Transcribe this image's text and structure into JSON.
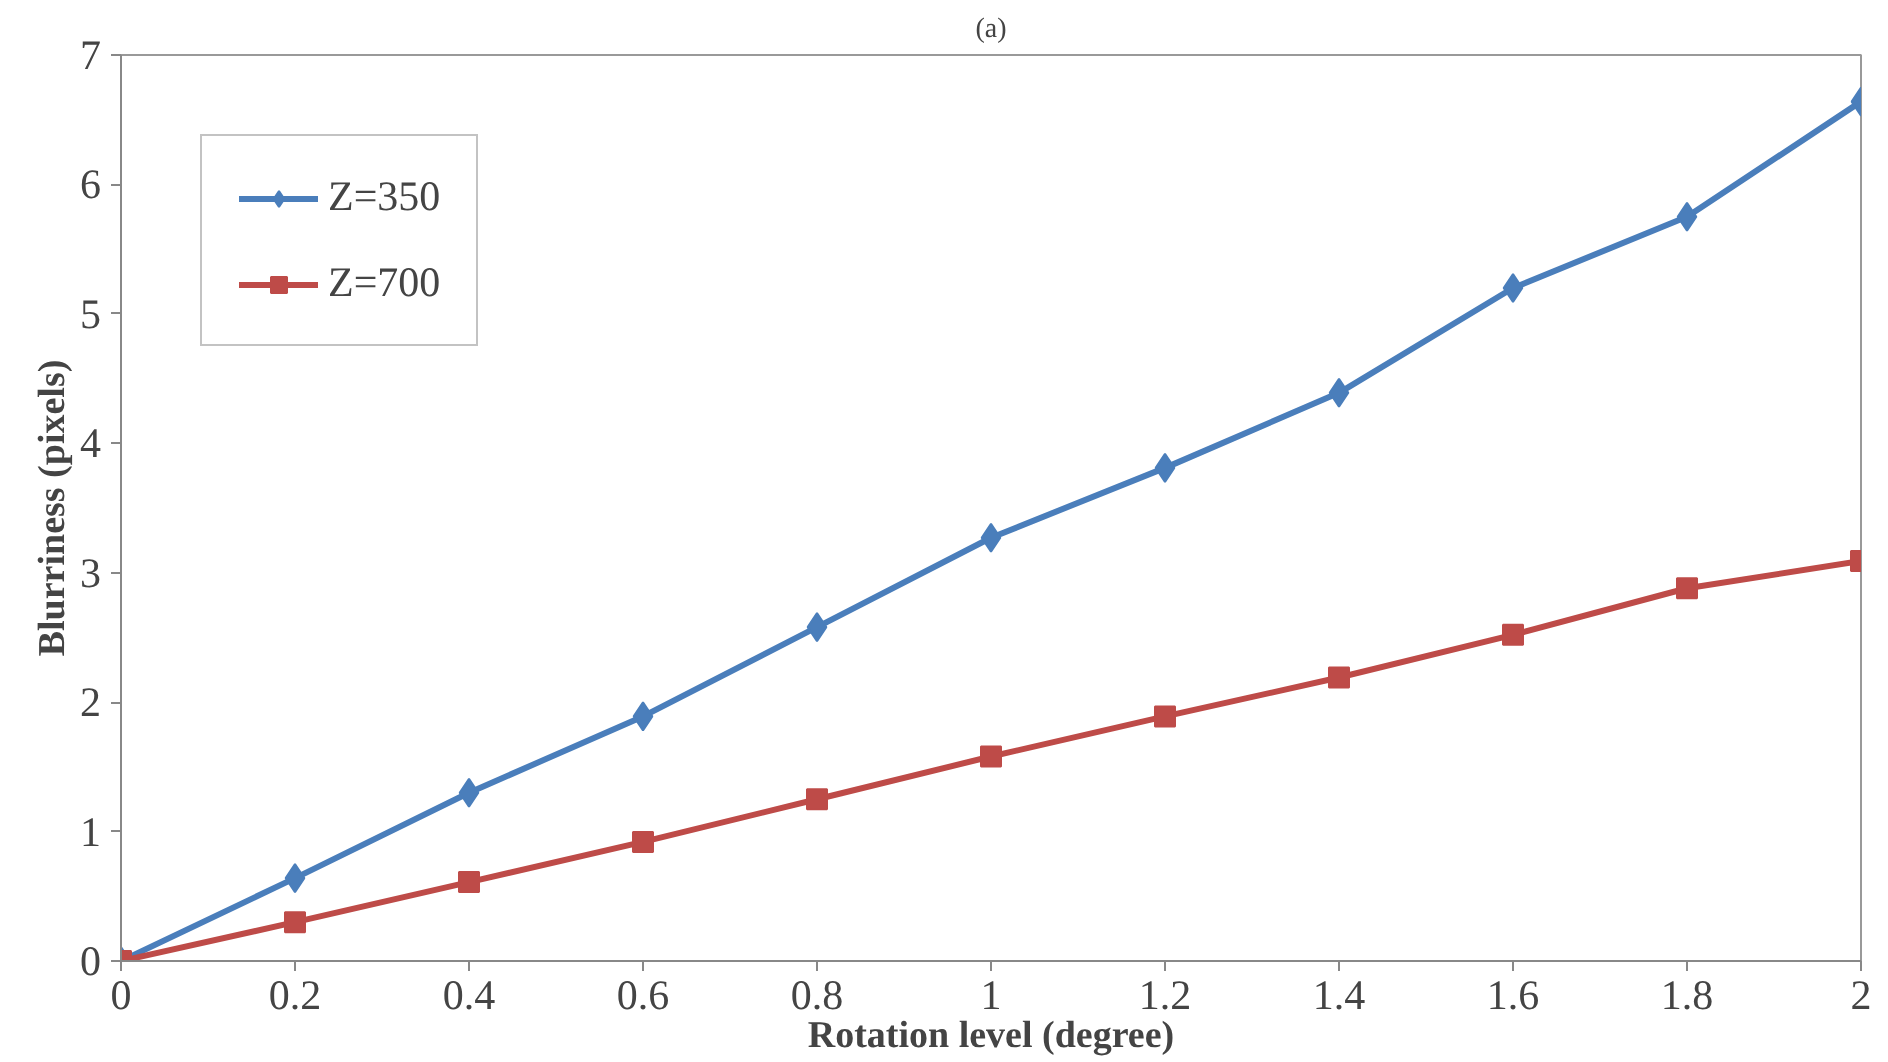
{
  "chart_data": {
    "type": "line",
    "title": "(a)",
    "xlabel": "Rotation level (degree)",
    "ylabel": "Blurriness (pixels)",
    "x": [
      0,
      0.2,
      0.4,
      0.6,
      0.8,
      1,
      1.2,
      1.4,
      1.6,
      1.8,
      2
    ],
    "series": [
      {
        "name": "Z=350",
        "color": "#4a7ebb",
        "marker": "diamond",
        "values": [
          0,
          0.64,
          1.3,
          1.89,
          2.58,
          3.27,
          3.81,
          4.39,
          5.2,
          5.75,
          6.64
        ]
      },
      {
        "name": "Z=700",
        "color": "#be4b48",
        "marker": "square",
        "values": [
          0,
          0.3,
          0.61,
          0.92,
          1.25,
          1.58,
          1.89,
          2.19,
          2.52,
          2.88,
          3.09
        ]
      }
    ],
    "xlim": [
      0,
      2
    ],
    "ylim": [
      0,
      7
    ],
    "xticks": [
      0,
      0.2,
      0.4,
      0.6,
      0.8,
      1,
      1.2,
      1.4,
      1.6,
      1.8,
      2
    ],
    "yticks": [
      0,
      1,
      2,
      3,
      4,
      5,
      6,
      7
    ],
    "grid": false,
    "legend": "top left",
    "line_style": "solid"
  }
}
